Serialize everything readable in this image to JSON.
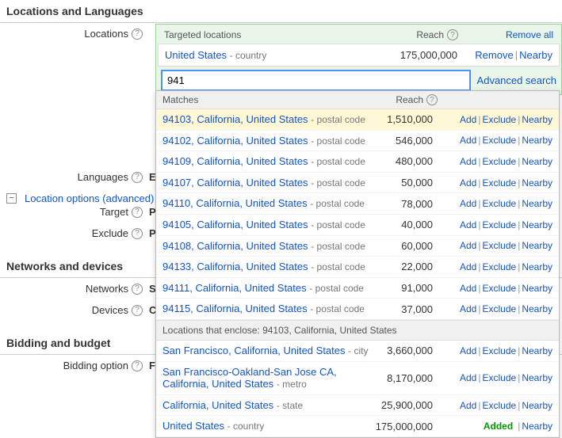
{
  "sections": {
    "locations_languages": "Locations and Languages",
    "networks_devices": "Networks and devices",
    "bidding_budget": "Bidding and budget"
  },
  "fields": {
    "locations": "Locations",
    "languages": "Languages",
    "languages_stub": "E",
    "target": "Target",
    "target_stub": "P",
    "exclude": "Exclude",
    "exclude_stub": "P",
    "networks": "Networks",
    "networks_stub": "S",
    "devices": "Devices",
    "devices_stub": "C",
    "bidding_option": "Bidding option",
    "bidding_stub": "F"
  },
  "advanced_link": "Location options (advanced)",
  "targeted": {
    "header_name": "Targeted locations",
    "header_reach": "Reach",
    "remove_all": "Remove all",
    "rows": [
      {
        "name": "United States",
        "type": "- country",
        "reach": "175,000,000"
      }
    ],
    "row_actions": {
      "remove": "Remove",
      "nearby": "Nearby"
    }
  },
  "search": {
    "value": "941",
    "advanced": "Advanced search"
  },
  "dropdown": {
    "matches_label": "Matches",
    "reach_label": "Reach",
    "actions": {
      "add": "Add",
      "exclude": "Exclude",
      "nearby": "Nearby",
      "added": "Added"
    },
    "matches": [
      {
        "name": "94103, California, United States",
        "type": "- postal code",
        "reach": "1,510,000",
        "hl": true
      },
      {
        "name": "94102, California, United States",
        "type": "- postal code",
        "reach": "546,000"
      },
      {
        "name": "94109, California, United States",
        "type": "- postal code",
        "reach": "480,000"
      },
      {
        "name": "94107, California, United States",
        "type": "- postal code",
        "reach": "50,000"
      },
      {
        "name": "94110, California, United States",
        "type": "- postal code",
        "reach": "78,000"
      },
      {
        "name": "94105, California, United States",
        "type": "- postal code",
        "reach": "40,000"
      },
      {
        "name": "94108, California, United States",
        "type": "- postal code",
        "reach": "60,000"
      },
      {
        "name": "94133, California, United States",
        "type": "- postal code",
        "reach": "22,000"
      },
      {
        "name": "94111, California, United States",
        "type": "- postal code",
        "reach": "91,000"
      },
      {
        "name": "94115, California, United States",
        "type": "- postal code",
        "reach": "37,000"
      }
    ],
    "enclose_label": "Locations that enclose: 94103, California, United States",
    "enclosing": [
      {
        "name": "San Francisco, California, United States",
        "type": "- city",
        "reach": "3,660,000"
      },
      {
        "name": "San Francisco-Oakland-San Jose CA, California, United States",
        "type": "- metro",
        "reach": "8,170,000"
      },
      {
        "name": "California, United States",
        "type": "- state",
        "reach": "25,900,000"
      },
      {
        "name": "United States",
        "type": "- country",
        "reach": "175,000,000",
        "added": true
      }
    ]
  }
}
